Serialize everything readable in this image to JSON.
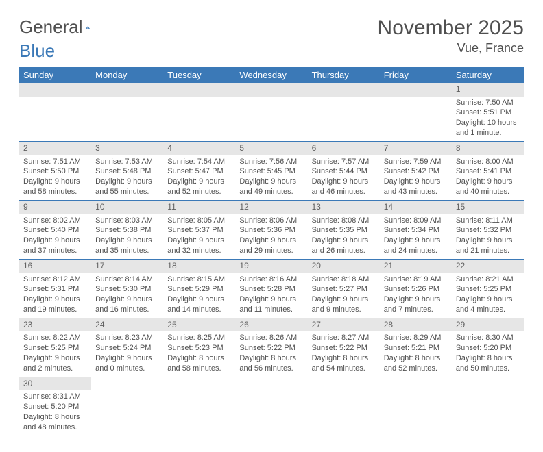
{
  "logo": {
    "part1": "General",
    "part2": "Blue"
  },
  "title": "November 2025",
  "location": "Vue, France",
  "colors": {
    "accent": "#3b79b7",
    "grayBand": "#e6e6e6",
    "text": "#505050",
    "bg": "#ffffff"
  },
  "weekdays": [
    "Sunday",
    "Monday",
    "Tuesday",
    "Wednesday",
    "Thursday",
    "Friday",
    "Saturday"
  ],
  "startOffset": 6,
  "days": [
    {
      "n": 1,
      "sr": "7:50 AM",
      "ss": "5:51 PM",
      "dl": "10 hours and 1 minute."
    },
    {
      "n": 2,
      "sr": "7:51 AM",
      "ss": "5:50 PM",
      "dl": "9 hours and 58 minutes."
    },
    {
      "n": 3,
      "sr": "7:53 AM",
      "ss": "5:48 PM",
      "dl": "9 hours and 55 minutes."
    },
    {
      "n": 4,
      "sr": "7:54 AM",
      "ss": "5:47 PM",
      "dl": "9 hours and 52 minutes."
    },
    {
      "n": 5,
      "sr": "7:56 AM",
      "ss": "5:45 PM",
      "dl": "9 hours and 49 minutes."
    },
    {
      "n": 6,
      "sr": "7:57 AM",
      "ss": "5:44 PM",
      "dl": "9 hours and 46 minutes."
    },
    {
      "n": 7,
      "sr": "7:59 AM",
      "ss": "5:42 PM",
      "dl": "9 hours and 43 minutes."
    },
    {
      "n": 8,
      "sr": "8:00 AM",
      "ss": "5:41 PM",
      "dl": "9 hours and 40 minutes."
    },
    {
      "n": 9,
      "sr": "8:02 AM",
      "ss": "5:40 PM",
      "dl": "9 hours and 37 minutes."
    },
    {
      "n": 10,
      "sr": "8:03 AM",
      "ss": "5:38 PM",
      "dl": "9 hours and 35 minutes."
    },
    {
      "n": 11,
      "sr": "8:05 AM",
      "ss": "5:37 PM",
      "dl": "9 hours and 32 minutes."
    },
    {
      "n": 12,
      "sr": "8:06 AM",
      "ss": "5:36 PM",
      "dl": "9 hours and 29 minutes."
    },
    {
      "n": 13,
      "sr": "8:08 AM",
      "ss": "5:35 PM",
      "dl": "9 hours and 26 minutes."
    },
    {
      "n": 14,
      "sr": "8:09 AM",
      "ss": "5:34 PM",
      "dl": "9 hours and 24 minutes."
    },
    {
      "n": 15,
      "sr": "8:11 AM",
      "ss": "5:32 PM",
      "dl": "9 hours and 21 minutes."
    },
    {
      "n": 16,
      "sr": "8:12 AM",
      "ss": "5:31 PM",
      "dl": "9 hours and 19 minutes."
    },
    {
      "n": 17,
      "sr": "8:14 AM",
      "ss": "5:30 PM",
      "dl": "9 hours and 16 minutes."
    },
    {
      "n": 18,
      "sr": "8:15 AM",
      "ss": "5:29 PM",
      "dl": "9 hours and 14 minutes."
    },
    {
      "n": 19,
      "sr": "8:16 AM",
      "ss": "5:28 PM",
      "dl": "9 hours and 11 minutes."
    },
    {
      "n": 20,
      "sr": "8:18 AM",
      "ss": "5:27 PM",
      "dl": "9 hours and 9 minutes."
    },
    {
      "n": 21,
      "sr": "8:19 AM",
      "ss": "5:26 PM",
      "dl": "9 hours and 7 minutes."
    },
    {
      "n": 22,
      "sr": "8:21 AM",
      "ss": "5:25 PM",
      "dl": "9 hours and 4 minutes."
    },
    {
      "n": 23,
      "sr": "8:22 AM",
      "ss": "5:25 PM",
      "dl": "9 hours and 2 minutes."
    },
    {
      "n": 24,
      "sr": "8:23 AM",
      "ss": "5:24 PM",
      "dl": "9 hours and 0 minutes."
    },
    {
      "n": 25,
      "sr": "8:25 AM",
      "ss": "5:23 PM",
      "dl": "8 hours and 58 minutes."
    },
    {
      "n": 26,
      "sr": "8:26 AM",
      "ss": "5:22 PM",
      "dl": "8 hours and 56 minutes."
    },
    {
      "n": 27,
      "sr": "8:27 AM",
      "ss": "5:22 PM",
      "dl": "8 hours and 54 minutes."
    },
    {
      "n": 28,
      "sr": "8:29 AM",
      "ss": "5:21 PM",
      "dl": "8 hours and 52 minutes."
    },
    {
      "n": 29,
      "sr": "8:30 AM",
      "ss": "5:20 PM",
      "dl": "8 hours and 50 minutes."
    },
    {
      "n": 30,
      "sr": "8:31 AM",
      "ss": "5:20 PM",
      "dl": "8 hours and 48 minutes."
    }
  ],
  "labels": {
    "sunrise": "Sunrise:",
    "sunset": "Sunset:",
    "daylight": "Daylight:"
  }
}
